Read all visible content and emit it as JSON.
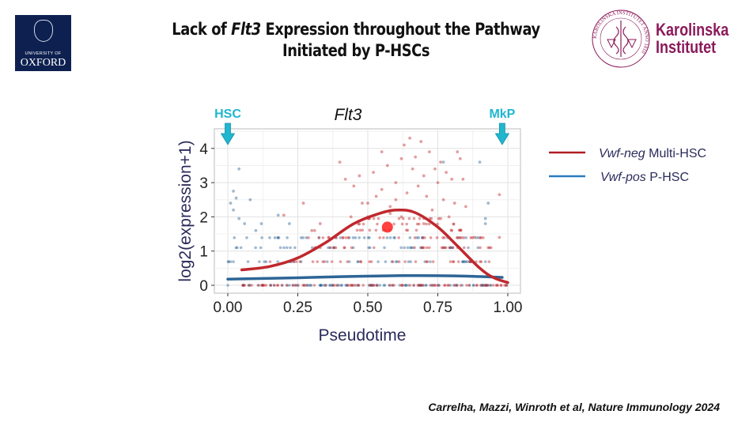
{
  "slide": {
    "title_line1_pre": "Lack of ",
    "title_line1_gene": "Flt3",
    "title_line1_post": " Expression throughout the Pathway",
    "title_line2": "Initiated by P-HSCs",
    "citation": "Carrelha, Mazzi,  Winroth et al,  Nature Immunology 2024",
    "logo_left": {
      "line1": "UNIVERSITY OF",
      "line2": "OXFORD"
    },
    "logo_right": {
      "line1": "Karolinska",
      "line2": "Institutet",
      "seal_text": "KAROLINSKA INSTITUTET ANNO 1810"
    }
  },
  "colors": {
    "red": "#c0282d",
    "blue": "#2e6596",
    "cyan": "#1fb6cf",
    "axis_text": "#2b2b5c",
    "oxford": "#0d2050",
    "ki": "#8b1a5a"
  },
  "chart_data": {
    "type": "scatter",
    "title": "Flt3",
    "xlabel": "Pseudotime",
    "ylabel": "log2(expression+1)",
    "xlim": [
      -0.05,
      1.05
    ],
    "ylim": [
      -0.2,
      4.5
    ],
    "xticks": [
      "0.00",
      "0.25",
      "0.50",
      "0.75",
      "1.00"
    ],
    "yticks": [
      "0",
      "1",
      "2",
      "3",
      "4"
    ],
    "grid": true,
    "annotations": [
      {
        "label": "HSC",
        "x": 0.0
      },
      {
        "label": "MkP",
        "x": 0.98
      }
    ],
    "legend": {
      "placement": "right",
      "entries": [
        {
          "italic": "Vwf-neg",
          "text": " Multi-HSC",
          "color": "#c0282d"
        },
        {
          "italic": "Vwf-pos",
          "text": " P-HSC",
          "color": "#2e6596"
        }
      ]
    },
    "series": [
      {
        "name": "Vwf-neg Multi-HSC",
        "color": "#c0282d",
        "trend": [
          [
            0.05,
            0.45
          ],
          [
            0.15,
            0.55
          ],
          [
            0.25,
            0.8
          ],
          [
            0.35,
            1.25
          ],
          [
            0.45,
            1.8
          ],
          [
            0.55,
            2.12
          ],
          [
            0.61,
            2.2
          ],
          [
            0.67,
            2.12
          ],
          [
            0.75,
            1.7
          ],
          [
            0.82,
            1.15
          ],
          [
            0.9,
            0.5
          ],
          [
            0.95,
            0.22
          ],
          [
            1.0,
            0.08
          ]
        ],
        "points": [
          [
            0.27,
            2.4
          ],
          [
            0.2,
            2.05
          ],
          [
            0.31,
            1.6
          ],
          [
            0.33,
            1.8
          ],
          [
            0.4,
            3.6
          ],
          [
            0.42,
            3.1
          ],
          [
            0.45,
            2.9
          ],
          [
            0.47,
            3.2
          ],
          [
            0.48,
            2.4
          ],
          [
            0.5,
            2.0
          ],
          [
            0.52,
            3.3
          ],
          [
            0.53,
            2.6
          ],
          [
            0.55,
            3.9
          ],
          [
            0.55,
            2.8
          ],
          [
            0.57,
            3.5
          ],
          [
            0.58,
            2.3
          ],
          [
            0.6,
            3.0
          ],
          [
            0.6,
            2.5
          ],
          [
            0.62,
            3.7
          ],
          [
            0.63,
            4.1
          ],
          [
            0.64,
            2.7
          ],
          [
            0.65,
            4.3
          ],
          [
            0.66,
            3.4
          ],
          [
            0.67,
            3.75
          ],
          [
            0.68,
            2.9
          ],
          [
            0.69,
            4.2
          ],
          [
            0.7,
            3.2
          ],
          [
            0.71,
            2.6
          ],
          [
            0.72,
            3.9
          ],
          [
            0.73,
            2.2
          ],
          [
            0.74,
            3.4
          ],
          [
            0.75,
            3.0
          ],
          [
            0.76,
            3.6
          ],
          [
            0.77,
            2.5
          ],
          [
            0.78,
            3.3
          ],
          [
            0.79,
            2.0
          ],
          [
            0.8,
            3.1
          ],
          [
            0.81,
            2.4
          ],
          [
            0.82,
            3.9
          ],
          [
            0.83,
            3.7
          ],
          [
            0.84,
            3.1
          ],
          [
            0.85,
            2.3
          ],
          [
            0.97,
            2.65
          ],
          [
            0.5,
            2.4
          ],
          [
            0.44,
            2.0
          ],
          [
            0.36,
            1.4
          ],
          [
            0.3,
            1.6
          ],
          [
            0.58,
            2.1
          ],
          [
            0.62,
            2.0
          ],
          [
            0.7,
            1.8
          ],
          [
            0.76,
            1.95
          ],
          [
            0.8,
            1.6
          ],
          [
            0.88,
            1.4
          ],
          [
            0.93,
            1.1
          ],
          [
            0.97,
            1.4
          ]
        ],
        "row_levels": [
          0,
          0.69,
          1.1,
          1.39,
          1.61,
          1.79,
          1.95
        ],
        "row_ranges": [
          [
            0.05,
            1.0
          ],
          [
            0.15,
            0.97
          ],
          [
            0.3,
            0.97
          ],
          [
            0.25,
            0.97
          ],
          [
            0.45,
            0.85
          ],
          [
            0.45,
            0.82
          ],
          [
            0.48,
            0.82
          ]
        ],
        "highlight": [
          0.57,
          1.7
        ]
      },
      {
        "name": "Vwf-pos P-HSC",
        "color": "#2e6596",
        "trend": [
          [
            0.0,
            0.18
          ],
          [
            0.2,
            0.21
          ],
          [
            0.4,
            0.25
          ],
          [
            0.6,
            0.28
          ],
          [
            0.75,
            0.28
          ],
          [
            0.88,
            0.26
          ],
          [
            0.98,
            0.23
          ]
        ],
        "points": [
          [
            0.02,
            2.75
          ],
          [
            0.04,
            3.4
          ],
          [
            0.03,
            2.55
          ],
          [
            0.02,
            2.2
          ],
          [
            0.01,
            2.4
          ],
          [
            0.08,
            2.5
          ],
          [
            0.04,
            1.95
          ],
          [
            0.06,
            1.8
          ],
          [
            0.1,
            1.6
          ],
          [
            0.12,
            1.8
          ],
          [
            0.18,
            2.05
          ],
          [
            0.22,
            1.8
          ],
          [
            0.9,
            3.6
          ],
          [
            0.93,
            2.4
          ],
          [
            0.92,
            1.95
          ],
          [
            0.92,
            1.8
          ],
          [
            0.77,
            3.6
          ]
        ],
        "row_levels": [
          0,
          0.69,
          1.1,
          1.39
        ],
        "row_ranges": [
          [
            0.0,
            1.0
          ],
          [
            0.0,
            0.95
          ],
          [
            0.0,
            0.9
          ],
          [
            0.0,
            0.9
          ]
        ]
      }
    ]
  }
}
